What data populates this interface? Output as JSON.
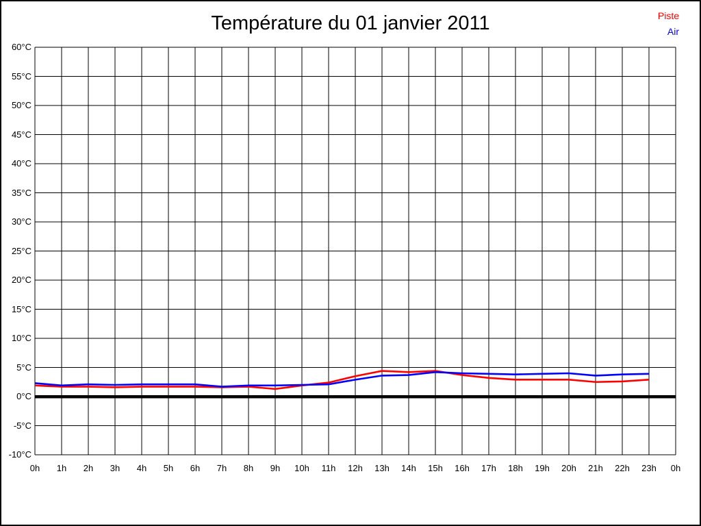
{
  "chart_data": {
    "type": "line",
    "title": "Température du 01 janvier 2011",
    "xlabel": "",
    "ylabel": "",
    "unit": "°C",
    "x_labels": [
      "0h",
      "1h",
      "2h",
      "3h",
      "4h",
      "5h",
      "6h",
      "7h",
      "8h",
      "9h",
      "10h",
      "11h",
      "12h",
      "13h",
      "14h",
      "15h",
      "16h",
      "17h",
      "18h",
      "19h",
      "20h",
      "21h",
      "22h",
      "23h",
      "0h"
    ],
    "y_tick_labels": [
      "60°C",
      "55°C",
      "50°C",
      "45°C",
      "40°C",
      "35°C",
      "30°C",
      "25°C",
      "20°C",
      "15°C",
      "10°C",
      "5°C",
      "0°C",
      "-5°C",
      "-10°C"
    ],
    "ylim": [
      -10,
      60
    ],
    "ytick_step": 5,
    "grid": true,
    "zero_line_bold": true,
    "legend_position": "top-right",
    "grid_color": "#000000",
    "series": [
      {
        "name": "Piste",
        "color": "#ff0000",
        "values": [
          1.9,
          1.7,
          1.7,
          1.6,
          1.7,
          1.7,
          1.7,
          1.6,
          1.7,
          1.3,
          1.9,
          2.4,
          3.5,
          4.4,
          4.2,
          4.4,
          3.7,
          3.2,
          2.9,
          2.9,
          2.9,
          2.5,
          2.6,
          2.9
        ]
      },
      {
        "name": "Air",
        "color": "#0000ff",
        "values": [
          2.3,
          1.9,
          2.1,
          2.0,
          2.1,
          2.1,
          2.1,
          1.7,
          1.9,
          1.9,
          2.0,
          2.1,
          2.9,
          3.6,
          3.7,
          4.2,
          4.0,
          3.9,
          3.8,
          3.9,
          4.0,
          3.6,
          3.8,
          3.9
        ]
      }
    ]
  }
}
